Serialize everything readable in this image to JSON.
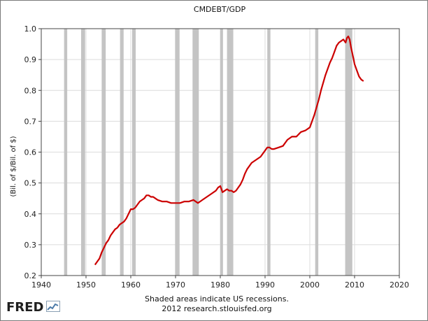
{
  "brand": {
    "name": "FRED"
  },
  "footer": {
    "line1": "Shaded areas indicate US recessions.",
    "line2": "2012 research.stlouisfed.org"
  },
  "chart_data": {
    "type": "line",
    "title": "CMDEBT/GDP",
    "xlabel": "",
    "ylabel": "(Bil. of $/Bil. of $)",
    "xlim": [
      1940,
      2020
    ],
    "ylim": [
      0.2,
      1.0
    ],
    "x_ticks": [
      1940,
      1950,
      1960,
      1970,
      1980,
      1990,
      2000,
      2010,
      2020
    ],
    "y_ticks": [
      0.2,
      0.3,
      0.4,
      0.5,
      0.6,
      0.7,
      0.8,
      0.9,
      1.0
    ],
    "y_tick_labels": [
      "0.2",
      "0.3",
      "0.4",
      "0.5",
      "0.6",
      "0.7",
      "0.8",
      "0.9",
      "1.0"
    ],
    "grid": "both",
    "legend": "none",
    "colors": {
      "line": "#cc0000",
      "recession": "#c4c4c4",
      "grid": "#dcdcdc"
    },
    "recessions": [
      [
        1945.1,
        1945.8
      ],
      [
        1948.9,
        1949.8
      ],
      [
        1953.5,
        1954.4
      ],
      [
        1957.6,
        1958.4
      ],
      [
        1960.3,
        1961.1
      ],
      [
        1969.9,
        1970.9
      ],
      [
        1973.8,
        1975.2
      ],
      [
        1980.0,
        1980.6
      ],
      [
        1981.5,
        1982.9
      ],
      [
        1990.5,
        1991.2
      ],
      [
        2001.2,
        2001.9
      ],
      [
        2007.9,
        2009.5
      ]
    ],
    "series": [
      {
        "x": [
          1952.0,
          1952.5,
          1953.0,
          1953.5,
          1954.0,
          1954.5,
          1955.0,
          1955.5,
          1956.0,
          1956.5,
          1957.0,
          1957.5,
          1958.0,
          1958.5,
          1959.0,
          1959.5,
          1960.0,
          1960.5,
          1961.0,
          1961.5,
          1962.0,
          1962.5,
          1963.0,
          1963.5,
          1964.0,
          1964.5,
          1965.0,
          1965.5,
          1966.0,
          1967.0,
          1968.0,
          1969.0,
          1970.0,
          1971.0,
          1972.0,
          1973.0,
          1974.0,
          1974.5,
          1975.0,
          1975.5,
          1976.0,
          1977.0,
          1978.0,
          1979.0,
          1979.5,
          1980.0,
          1980.5,
          1981.0,
          1981.5,
          1982.0,
          1982.5,
          1983.0,
          1983.5,
          1984.0,
          1984.5,
          1985.0,
          1985.5,
          1986.0,
          1986.5,
          1987.0,
          1988.0,
          1989.0,
          1990.0,
          1990.5,
          1991.0,
          1991.5,
          1992.0,
          1993.0,
          1994.0,
          1995.0,
          1996.0,
          1997.0,
          1998.0,
          1999.0,
          2000.0,
          2000.5,
          2001.0,
          2001.5,
          2002.0,
          2002.5,
          2003.0,
          2003.5,
          2004.0,
          2004.5,
          2005.0,
          2005.5,
          2006.0,
          2006.5,
          2007.0,
          2007.5,
          2008.0,
          2008.3,
          2008.6,
          2008.9,
          2009.2,
          2009.5,
          2009.8,
          2010.0,
          2010.5,
          2011.0,
          2011.5,
          2012.0
        ],
        "y": [
          0.235,
          0.245,
          0.255,
          0.275,
          0.29,
          0.305,
          0.315,
          0.33,
          0.34,
          0.35,
          0.355,
          0.365,
          0.37,
          0.375,
          0.385,
          0.4,
          0.415,
          0.415,
          0.42,
          0.43,
          0.44,
          0.445,
          0.45,
          0.46,
          0.46,
          0.455,
          0.455,
          0.45,
          0.445,
          0.44,
          0.44,
          0.435,
          0.435,
          0.435,
          0.44,
          0.44,
          0.445,
          0.44,
          0.435,
          0.44,
          0.445,
          0.455,
          0.465,
          0.475,
          0.485,
          0.49,
          0.47,
          0.475,
          0.48,
          0.475,
          0.475,
          0.47,
          0.475,
          0.485,
          0.495,
          0.51,
          0.53,
          0.545,
          0.555,
          0.565,
          0.575,
          0.585,
          0.605,
          0.615,
          0.615,
          0.61,
          0.61,
          0.615,
          0.62,
          0.64,
          0.65,
          0.65,
          0.665,
          0.67,
          0.68,
          0.7,
          0.72,
          0.745,
          0.77,
          0.8,
          0.825,
          0.85,
          0.87,
          0.89,
          0.905,
          0.925,
          0.945,
          0.955,
          0.96,
          0.965,
          0.955,
          0.97,
          0.975,
          0.965,
          0.94,
          0.92,
          0.9,
          0.885,
          0.865,
          0.845,
          0.835,
          0.83
        ]
      }
    ]
  }
}
